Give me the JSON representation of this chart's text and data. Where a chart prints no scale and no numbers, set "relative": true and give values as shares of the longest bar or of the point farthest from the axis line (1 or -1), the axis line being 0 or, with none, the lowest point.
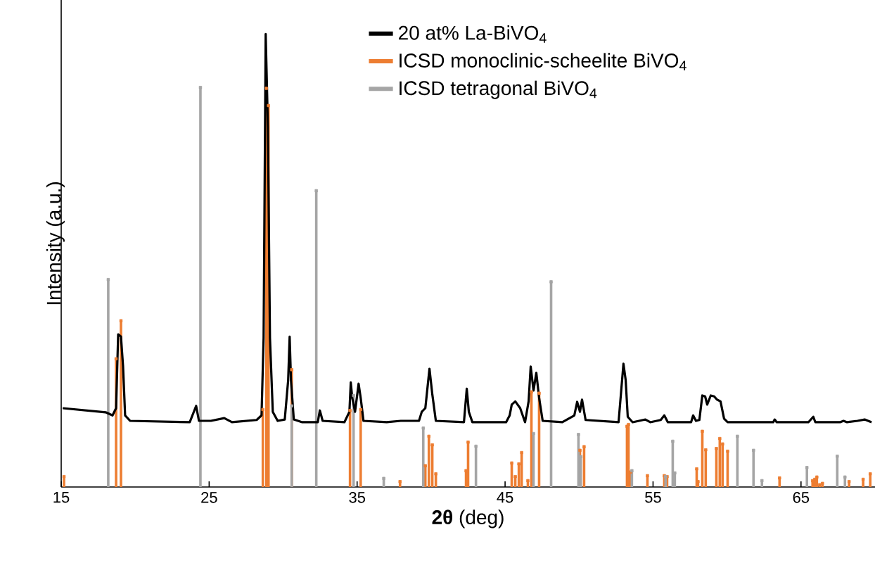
{
  "chart_data": {
    "type": "line",
    "relative": true,
    "xlabel": "**2θ** (deg)",
    "ylabel": "Intensity (a.u.)",
    "xlim": [
      15,
      70
    ],
    "xticks": [
      15,
      25,
      35,
      45,
      55,
      65
    ],
    "legend": "top",
    "tick_labels": "x",
    "series": [
      {
        "name": "20 at% La-BiVO$_{4}$",
        "color": "#000000",
        "x": [
          15.1,
          18.0,
          18.47,
          18.71,
          18.85,
          19.04,
          19.18,
          19.32,
          19.66,
          23.69,
          24.12,
          24.31,
          25.12,
          26.02,
          26.54,
          28.21,
          28.54,
          28.68,
          28.82,
          28.97,
          29.11,
          29.3,
          29.63,
          30.11,
          30.34,
          30.44,
          30.53,
          30.72,
          31.29,
          32.34,
          32.48,
          32.67,
          34.14,
          34.48,
          34.57,
          34.67,
          34.86,
          35.1,
          35.24,
          35.43,
          37.0,
          37.95,
          39.18,
          39.37,
          39.61,
          39.89,
          40.08,
          40.32,
          42.22,
          42.41,
          42.55,
          42.79,
          45.07,
          45.31,
          45.45,
          45.69,
          46.02,
          46.35,
          46.59,
          46.73,
          46.92,
          47.11,
          47.3,
          47.54,
          48.87,
          49.68,
          49.87,
          50.06,
          50.2,
          50.44,
          52.67,
          53.0,
          53.15,
          53.29,
          53.62,
          54.33,
          54.48,
          54.81,
          55.52,
          55.76,
          56.0,
          57.57,
          57.71,
          57.9,
          58.13,
          58.33,
          58.52,
          58.66,
          58.9,
          59.13,
          59.32,
          59.56,
          59.8,
          60.04,
          63.12,
          63.22,
          63.36,
          65.5,
          65.83,
          65.97,
          67.64,
          67.87,
          68.11,
          68.82,
          69.3,
          69.77
        ],
        "values": [
          0.174,
          0.165,
          0.158,
          0.174,
          0.337,
          0.332,
          0.267,
          0.158,
          0.146,
          0.143,
          0.179,
          0.146,
          0.146,
          0.152,
          0.143,
          0.148,
          0.158,
          0.329,
          1,
          0.795,
          0.329,
          0.166,
          0.146,
          0.149,
          0.236,
          0.332,
          0.236,
          0.149,
          0.143,
          0.143,
          0.169,
          0.146,
          0.143,
          0.166,
          0.231,
          0.197,
          0.166,
          0.228,
          0.197,
          0.146,
          0.143,
          0.146,
          0.146,
          0.166,
          0.174,
          0.261,
          0.205,
          0.146,
          0.143,
          0.217,
          0.166,
          0.143,
          0.143,
          0.158,
          0.182,
          0.189,
          0.174,
          0.143,
          0.189,
          0.266,
          0.213,
          0.252,
          0.197,
          0.146,
          0.143,
          0.158,
          0.188,
          0.166,
          0.193,
          0.148,
          0.143,
          0.272,
          0.236,
          0.155,
          0.143,
          0.148,
          0.149,
          0.143,
          0.148,
          0.158,
          0.143,
          0.143,
          0.158,
          0.146,
          0.148,
          0.202,
          0.2,
          0.182,
          0.202,
          0.2,
          0.193,
          0.189,
          0.151,
          0.143,
          0.143,
          0.149,
          0.143,
          0.143,
          0.155,
          0.143,
          0.143,
          0.146,
          0.143,
          0.146,
          0.149,
          0.143
        ]
      },
      {
        "name": "ICSD monoclinic-scheelite BiVO$_{4}$",
        "color": "#ed7d31",
        "type": "lollipop",
        "marker": "square",
        "x": [
          15.19,
          18.71,
          19.04,
          28.63,
          28.87,
          29.01,
          30.58,
          34.52,
          35.24,
          37.9,
          39.61,
          39.85,
          40.08,
          40.32,
          42.36,
          42.5,
          45.45,
          45.69,
          45.93,
          46.12,
          46.54,
          46.78,
          47.3,
          50.06,
          50.34,
          53.24,
          53.34,
          53.48,
          54.62,
          55.76,
          55.95,
          57.95,
          58.04,
          58.33,
          58.56,
          59.28,
          59.51,
          59.7,
          60.04,
          63.55,
          65.78,
          65.93,
          66.07,
          66.26,
          66.45,
          68.25,
          69.2,
          69.68
        ],
        "values": [
          0.023,
          0.283,
          0.367,
          0.171,
          0.88,
          0.842,
          0.259,
          0.169,
          0.171,
          0.012,
          0.047,
          0.112,
          0.093,
          0.029,
          0.036,
          0.099,
          0.053,
          0.023,
          0.051,
          0.076,
          0.014,
          0.21,
          0.207,
          0.081,
          0.089,
          0.134,
          0.138,
          0.033,
          0.025,
          0.025,
          0.023,
          0.04,
          0.012,
          0.123,
          0.082,
          0.085,
          0.107,
          0.095,
          0.079,
          0.02,
          0.014,
          0.017,
          0.022,
          0.005,
          0.008,
          0.012,
          0.017,
          0.029
        ]
      },
      {
        "name": "ICSD tetragonal BiVO$_{4}$",
        "color": "#a5a5a5",
        "type": "lollipop",
        "marker": "square",
        "x": [
          18.18,
          24.41,
          30.58,
          32.24,
          34.76,
          36.8,
          39.47,
          43.03,
          46.92,
          48.11,
          49.96,
          50.11,
          53.57,
          55.85,
          56.33,
          56.47,
          60.7,
          61.79,
          62.36,
          65.4,
          67.45,
          67.97
        ],
        "values": [
          0.458,
          0.882,
          0.179,
          0.654,
          0.202,
          0.019,
          0.13,
          0.09,
          0.118,
          0.453,
          0.116,
          0.067,
          0.036,
          0.023,
          0.101,
          0.031,
          0.112,
          0.081,
          0.014,
          0.043,
          0.068,
          0.022
        ]
      }
    ]
  }
}
